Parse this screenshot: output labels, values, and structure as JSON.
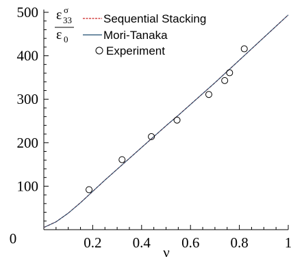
{
  "chart_data": {
    "type": "line",
    "title": "",
    "xlabel": "ν",
    "ylabel": {
      "numerator_base": "ε",
      "numerator_sup": "σ",
      "numerator_sub": "33",
      "denominator_base": "ε",
      "denominator_sub": "0"
    },
    "xlim": [
      0,
      1
    ],
    "ylim": [
      0,
      500
    ],
    "x_ticks": [
      0.2,
      0.4,
      0.6,
      0.8,
      1
    ],
    "x_tick_labels": [
      "0.2",
      "0.4",
      "0.6",
      "0.8",
      "1"
    ],
    "y_ticks": [
      100,
      200,
      300,
      400,
      500
    ],
    "y_tick_labels": [
      "100",
      "200",
      "300",
      "400",
      "500"
    ],
    "origin_label": "0",
    "grid": false,
    "legend_position": "top-left",
    "series": [
      {
        "name": "Sequential Stacking",
        "kind": "line",
        "color": "#cc2222",
        "style": "dashed",
        "x": [
          0,
          0.05,
          0.1,
          0.15,
          0.2,
          0.25,
          0.3,
          0.35,
          0.4,
          0.45,
          0.5,
          0.55,
          0.6,
          0.65,
          0.7,
          0.75,
          0.8,
          0.85,
          0.9,
          0.95,
          1.0
        ],
        "y": [
          5,
          18,
          38,
          62,
          88,
          114,
          139,
          164,
          189,
          214,
          239,
          263,
          288,
          313,
          338,
          364,
          390,
          416,
          442,
          468,
          494
        ]
      },
      {
        "name": "Mori-Tanaka",
        "kind": "line",
        "color": "#1a4a6e",
        "style": "solid",
        "x": [
          0,
          0.05,
          0.1,
          0.15,
          0.2,
          0.25,
          0.3,
          0.35,
          0.4,
          0.45,
          0.5,
          0.55,
          0.6,
          0.65,
          0.7,
          0.75,
          0.8,
          0.85,
          0.9,
          0.95,
          1.0
        ],
        "y": [
          5,
          18,
          38,
          62,
          88,
          114,
          139,
          164,
          189,
          214,
          239,
          263,
          288,
          313,
          338,
          364,
          390,
          416,
          442,
          468,
          494
        ]
      },
      {
        "name": "Experiment",
        "kind": "scatter",
        "color": "#000000",
        "marker": "open-circle",
        "x": [
          0.185,
          0.32,
          0.44,
          0.545,
          0.675,
          0.74,
          0.76,
          0.82
        ],
        "y": [
          92,
          161,
          214,
          252,
          311,
          343,
          361,
          416
        ]
      }
    ]
  }
}
